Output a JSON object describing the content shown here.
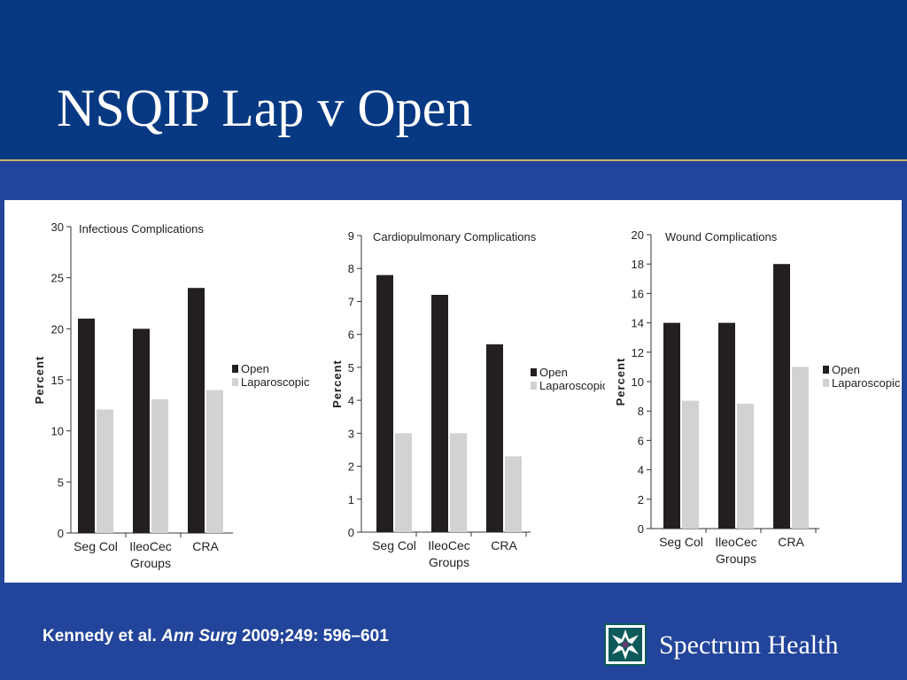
{
  "slide": {
    "title": "NSQIP Lap v Open",
    "citation_authors": "Kennedy et al.",
    "citation_journal": "Ann Surg",
    "citation_ref": "2009;249: 596–601",
    "brand": "Spectrum Health",
    "logo_icon": "star-quilt-logo-icon"
  },
  "colors": {
    "open": "#231f20",
    "laparoscopic": "#d2d2d4",
    "header": "#073983",
    "background": "#22449a"
  },
  "chart_data": [
    {
      "type": "bar",
      "title": "Infectious Complications",
      "ylabel": "Percent",
      "xlabel": "Groups",
      "categories": [
        "Seg Col",
        "IleoCec",
        "CRA"
      ],
      "series": [
        {
          "name": "Open",
          "values": [
            21,
            20,
            24
          ]
        },
        {
          "name": "Laparoscopic",
          "values": [
            12.1,
            13.1,
            14
          ]
        }
      ],
      "ylim": [
        0,
        30
      ],
      "yticks": [
        0,
        5,
        10,
        15,
        20,
        25,
        30
      ],
      "legend": "right"
    },
    {
      "type": "bar",
      "title": "Cardiopulmonary Complications",
      "ylabel": "Percent",
      "xlabel": "Groups",
      "categories": [
        "Seg Col",
        "IleoCec",
        "CRA"
      ],
      "series": [
        {
          "name": "Open",
          "values": [
            7.8,
            7.2,
            5.7
          ]
        },
        {
          "name": "Laparoscopic",
          "values": [
            3.0,
            3.0,
            2.3
          ]
        }
      ],
      "ylim": [
        0,
        9
      ],
      "yticks": [
        0,
        1,
        2,
        3,
        4,
        5,
        6,
        7,
        8,
        9
      ],
      "legend": "right"
    },
    {
      "type": "bar",
      "title": "Wound Complications",
      "ylabel": "Percent",
      "xlabel": "Groups",
      "categories": [
        "Seg Col",
        "IleoCec",
        "CRA"
      ],
      "series": [
        {
          "name": "Open",
          "values": [
            14,
            14,
            18
          ]
        },
        {
          "name": "Laparoscopic",
          "values": [
            8.7,
            8.5,
            11
          ]
        }
      ],
      "ylim": [
        0,
        20
      ],
      "yticks": [
        0,
        2,
        4,
        6,
        8,
        10,
        12,
        14,
        16,
        18,
        20
      ],
      "legend": "right"
    }
  ]
}
